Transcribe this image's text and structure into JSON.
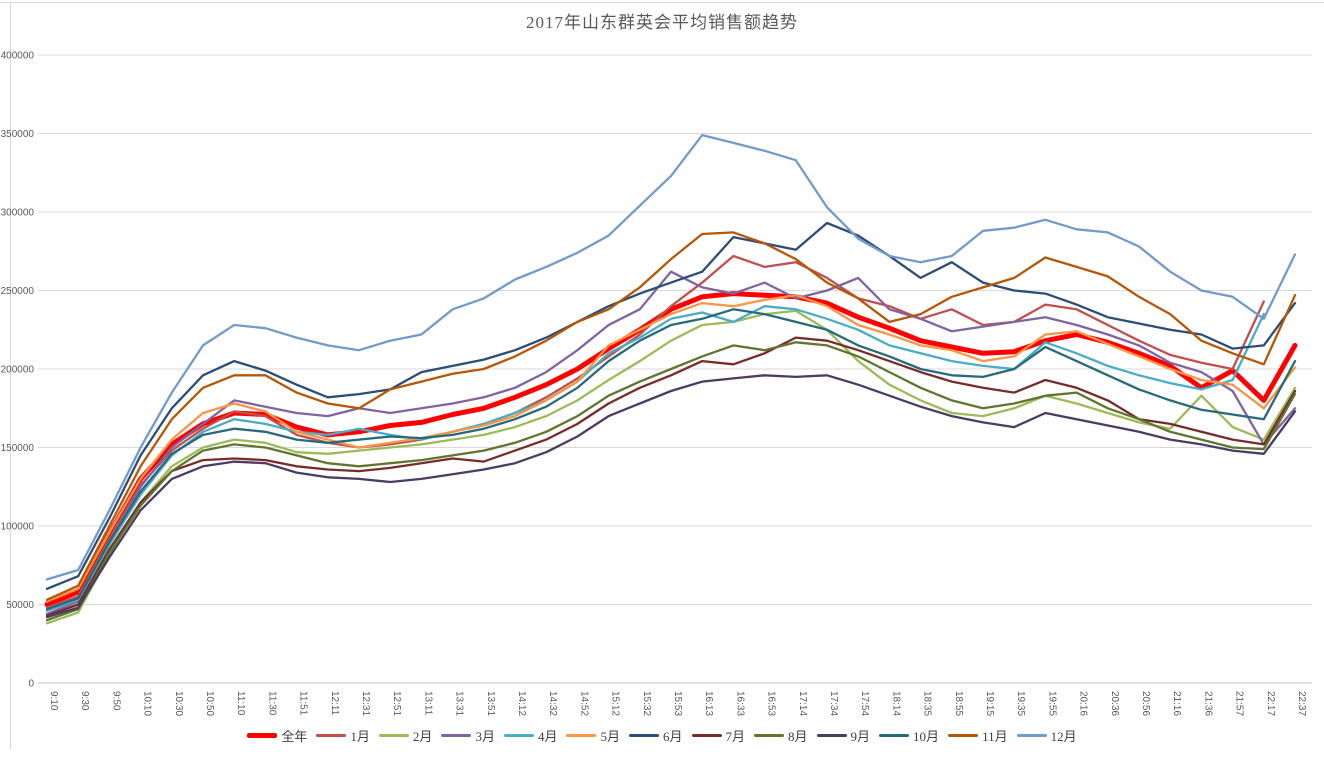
{
  "title": "2017年山东群英会平均销售额趋势",
  "chart_data": {
    "type": "line",
    "title": "2017年山东群英会平均销售额趋势",
    "xlabel": "",
    "ylabel": "",
    "grid": "horizontal-only",
    "legend_position": "bottom-center",
    "ylim": [
      0,
      400000
    ],
    "ytick_interval": 50000,
    "yticks": [
      0,
      50000,
      100000,
      150000,
      200000,
      250000,
      300000,
      350000,
      400000
    ],
    "x": [
      "9:10",
      "9:30",
      "9:50",
      "10:10",
      "10:30",
      "10:50",
      "11:10",
      "11:30",
      "11:51",
      "12:11",
      "12:31",
      "12:51",
      "13:11",
      "13:31",
      "13:51",
      "14:12",
      "14:32",
      "14:52",
      "15:12",
      "15:32",
      "15:53",
      "16:13",
      "16:33",
      "16:53",
      "17:14",
      "17:34",
      "17:54",
      "18:14",
      "18:35",
      "18:55",
      "19:15",
      "19:35",
      "19:55",
      "20:16",
      "20:36",
      "20:56",
      "21:16",
      "21:36",
      "21:57",
      "22:17",
      "22:37"
    ],
    "series": [
      {
        "name": "全年",
        "color": "#FF0000",
        "width": 5,
        "values": [
          50000,
          58000,
          95000,
          130000,
          152000,
          165000,
          172000,
          171000,
          163000,
          158000,
          160000,
          164000,
          166000,
          171000,
          175000,
          182000,
          190000,
          200000,
          213000,
          225000,
          238000,
          246000,
          248000,
          247000,
          246000,
          242000,
          233000,
          226000,
          218000,
          214000,
          210000,
          211000,
          218000,
          222000,
          217000,
          210000,
          202000,
          188000,
          199000,
          180000,
          215000
        ]
      },
      {
        "name": "1月",
        "color": "#C0504D",
        "width": 2.3,
        "values": [
          48000,
          55000,
          92000,
          126000,
          148000,
          162000,
          173000,
          170000,
          158000,
          153000,
          150000,
          152000,
          155000,
          160000,
          165000,
          172000,
          182000,
          194000,
          208000,
          222000,
          240000,
          255000,
          272000,
          265000,
          268000,
          258000,
          245000,
          240000,
          232000,
          238000,
          228000,
          230000,
          241000,
          238000,
          228000,
          218000,
          209000,
          204000,
          200000,
          243000,
          null
        ]
      },
      {
        "name": "2月",
        "color": "#9BBB59",
        "width": 2.3,
        "values": [
          38000,
          45000,
          82000,
          115000,
          138000,
          150000,
          155000,
          153000,
          147000,
          146000,
          148000,
          150000,
          152000,
          155000,
          158000,
          163000,
          170000,
          180000,
          193000,
          205000,
          218000,
          228000,
          230000,
          235000,
          237000,
          225000,
          205000,
          190000,
          180000,
          172000,
          170000,
          175000,
          183000,
          178000,
          172000,
          166000,
          162000,
          183000,
          163000,
          155000,
          188000
        ]
      },
      {
        "name": "3月",
        "color": "#8064A2",
        "width": 2.3,
        "values": [
          44000,
          52000,
          90000,
          125000,
          150000,
          165000,
          180000,
          176000,
          172000,
          170000,
          175000,
          172000,
          175000,
          178000,
          182000,
          188000,
          198000,
          212000,
          228000,
          238000,
          262000,
          252000,
          248000,
          255000,
          245000,
          250000,
          258000,
          238000,
          232000,
          224000,
          227000,
          230000,
          233000,
          228000,
          222000,
          215000,
          204000,
          198000,
          186000,
          152000,
          175000
        ]
      },
      {
        "name": "4月",
        "color": "#4BACC6",
        "width": 2.3,
        "values": [
          46000,
          53000,
          88000,
          120000,
          145000,
          160000,
          168000,
          165000,
          160000,
          158000,
          162000,
          158000,
          155000,
          160000,
          165000,
          172000,
          180000,
          192000,
          210000,
          220000,
          232000,
          236000,
          230000,
          240000,
          238000,
          232000,
          225000,
          215000,
          210000,
          205000,
          202000,
          200000,
          217000,
          210000,
          202000,
          196000,
          191000,
          187000,
          193000,
          235000,
          null
        ]
      },
      {
        "name": "5月",
        "color": "#F79646",
        "width": 2.3,
        "values": [
          52000,
          60000,
          96000,
          130000,
          155000,
          172000,
          178000,
          173000,
          160000,
          155000,
          150000,
          153000,
          156000,
          160000,
          164000,
          170000,
          180000,
          192000,
          215000,
          225000,
          235000,
          242000,
          240000,
          244000,
          247000,
          240000,
          228000,
          222000,
          215000,
          212000,
          205000,
          208000,
          222000,
          224000,
          216000,
          208000,
          200000,
          193000,
          190000,
          175000,
          201000
        ]
      },
      {
        "name": "6月",
        "color": "#2C4D75",
        "width": 2.3,
        "values": [
          60000,
          68000,
          105000,
          145000,
          175000,
          196000,
          205000,
          199000,
          190000,
          182000,
          184000,
          187000,
          198000,
          202000,
          206000,
          212000,
          220000,
          230000,
          240000,
          248000,
          255000,
          262000,
          284000,
          280000,
          276000,
          293000,
          285000,
          272000,
          258000,
          268000,
          255000,
          250000,
          248000,
          241000,
          233000,
          229000,
          225000,
          222000,
          213000,
          215000,
          242000
        ]
      },
      {
        "name": "7月",
        "color": "#772C2A",
        "width": 2.3,
        "values": [
          43000,
          50000,
          85000,
          115000,
          135000,
          142000,
          143000,
          142000,
          138000,
          136000,
          135000,
          137000,
          140000,
          143000,
          141000,
          148000,
          155000,
          165000,
          178000,
          188000,
          196000,
          205000,
          203000,
          210000,
          220000,
          218000,
          212000,
          205000,
          198000,
          192000,
          188000,
          185000,
          193000,
          188000,
          180000,
          168000,
          165000,
          160000,
          155000,
          152000,
          186000
        ]
      },
      {
        "name": "8月",
        "color": "#5F7530",
        "width": 2.3,
        "values": [
          40000,
          47000,
          83000,
          113000,
          135000,
          148000,
          152000,
          150000,
          145000,
          140000,
          138000,
          140000,
          142000,
          145000,
          148000,
          153000,
          160000,
          170000,
          183000,
          192000,
          200000,
          208000,
          215000,
          212000,
          217000,
          215000,
          208000,
          198000,
          188000,
          180000,
          175000,
          178000,
          183000,
          185000,
          175000,
          168000,
          160000,
          155000,
          150000,
          149000,
          184000
        ]
      },
      {
        "name": "9月",
        "color": "#4D3B62",
        "width": 2.3,
        "values": [
          42000,
          48000,
          80000,
          110000,
          130000,
          138000,
          141000,
          140000,
          134000,
          131000,
          130000,
          128000,
          130000,
          133000,
          136000,
          140000,
          147000,
          157000,
          170000,
          178000,
          186000,
          192000,
          194000,
          196000,
          195000,
          196000,
          190000,
          183000,
          176000,
          170000,
          166000,
          163000,
          172000,
          168000,
          164000,
          160000,
          155000,
          152000,
          148000,
          146000,
          173000
        ]
      },
      {
        "name": "10月",
        "color": "#276A7C",
        "width": 2.3,
        "values": [
          47000,
          54000,
          90000,
          122000,
          146000,
          158000,
          162000,
          160000,
          155000,
          153000,
          155000,
          157000,
          156000,
          158000,
          162000,
          168000,
          176000,
          188000,
          205000,
          218000,
          228000,
          232000,
          238000,
          235000,
          230000,
          225000,
          215000,
          208000,
          200000,
          196000,
          195000,
          200000,
          214000,
          205000,
          196000,
          187000,
          180000,
          174000,
          171000,
          168000,
          205000
        ]
      },
      {
        "name": "11月",
        "color": "#B65708",
        "width": 2.3,
        "values": [
          53000,
          62000,
          100000,
          138000,
          168000,
          188000,
          196000,
          196000,
          185000,
          178000,
          175000,
          187000,
          192000,
          197000,
          200000,
          208000,
          218000,
          230000,
          238000,
          252000,
          270000,
          286000,
          287000,
          280000,
          270000,
          255000,
          245000,
          230000,
          235000,
          246000,
          252000,
          258000,
          271000,
          265000,
          259000,
          246000,
          235000,
          218000,
          210000,
          203000,
          247000
        ]
      },
      {
        "name": "12月",
        "color": "#729ACA",
        "width": 2.3,
        "values": [
          66000,
          72000,
          110000,
          150000,
          185000,
          215000,
          228000,
          226000,
          220000,
          215000,
          212000,
          218000,
          222000,
          238000,
          245000,
          257000,
          265000,
          274000,
          285000,
          304000,
          323000,
          349000,
          344000,
          339000,
          333000,
          303000,
          283000,
          272000,
          268000,
          272000,
          288000,
          290000,
          295000,
          289000,
          287000,
          278000,
          262000,
          250000,
          246000,
          232000,
          273000
        ]
      }
    ]
  }
}
